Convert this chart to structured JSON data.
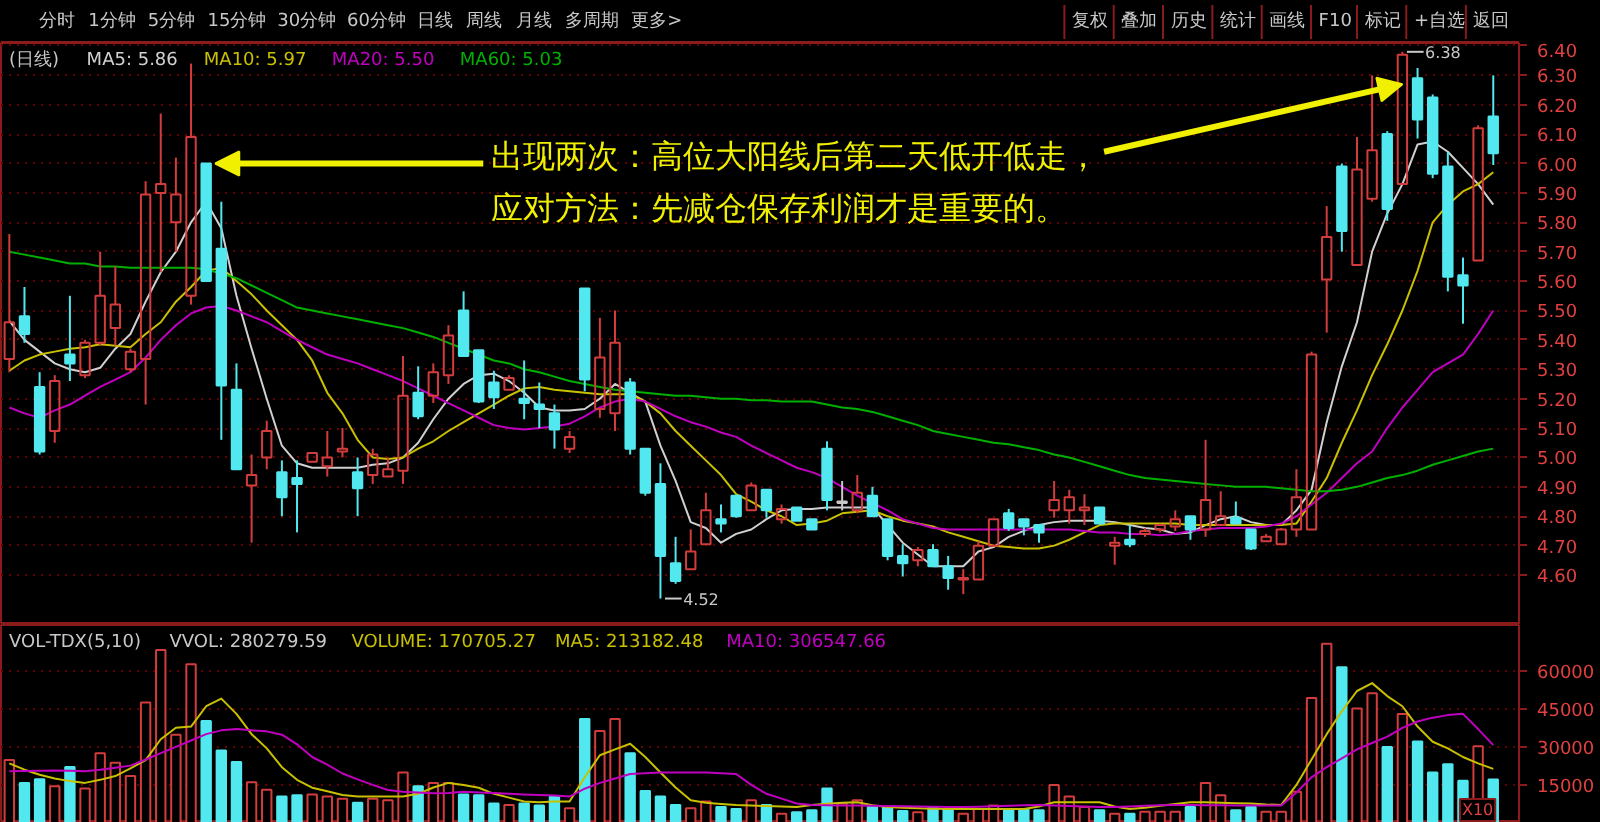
{
  "chart_data": [
    {
      "type": "other",
      "annotations": [
        "分时",
        "1分钟",
        "5分钟",
        "15分钟",
        "30分钟",
        "60分钟",
        "日线",
        "周线",
        "月线",
        "多周期",
        "更多>"
      ]
    },
    {
      "type": "other",
      "annotations": [
        "复权",
        "叠加",
        "历史",
        "统计",
        "画线",
        "F10",
        "标记",
        "+自选",
        "返回"
      ]
    },
    {
      "type": "candlestick",
      "title": "(日线)",
      "legend": "top left",
      "grid": "y",
      "tick_labels": "y",
      "categories": [
        null,
        null,
        null,
        null,
        null,
        null,
        null,
        null,
        null,
        null,
        null,
        null,
        null,
        null,
        null,
        null,
        null,
        null,
        null,
        null,
        null,
        null,
        null,
        null,
        null,
        null,
        null,
        null,
        null,
        null,
        null,
        null,
        null,
        null,
        null,
        null,
        null,
        null,
        null,
        null,
        null,
        null,
        null,
        null,
        null,
        null,
        null,
        null,
        null,
        null,
        null,
        null,
        null,
        null,
        null,
        null,
        null,
        null,
        null,
        null,
        null,
        null,
        null,
        null,
        null,
        null,
        null,
        null,
        null,
        null,
        null,
        null,
        null,
        null,
        null,
        null,
        null,
        null,
        null,
        null,
        null,
        null,
        null,
        null,
        null,
        null,
        null,
        null,
        null,
        null,
        null,
        null,
        null,
        null,
        null,
        null,
        null,
        null,
        null
      ],
      "ohlc": [
        [
          5.335,
          5.76,
          5.29,
          5.46
        ],
        [
          5.48,
          5.58,
          5.39,
          5.42
        ],
        [
          5.24,
          5.29,
          5.01,
          5.02
        ],
        [
          5.09,
          5.28,
          5.05,
          5.26
        ],
        [
          5.35,
          5.55,
          5.26,
          5.32
        ],
        [
          5.28,
          5.4,
          5.27,
          5.39
        ],
        [
          5.39,
          5.7,
          5.38,
          5.55
        ],
        [
          5.44,
          5.65,
          5.38,
          5.52
        ],
        [
          5.3,
          5.37,
          5.29,
          5.36
        ],
        [
          5.335,
          5.94,
          5.18,
          5.895
        ],
        [
          5.9,
          6.17,
          5.63,
          5.93
        ],
        [
          5.8,
          6.02,
          5.7,
          5.895
        ],
        [
          5.55,
          6.34,
          5.52,
          6.09
        ],
        [
          6.0,
          6.0,
          5.6,
          5.6
        ],
        [
          5.71,
          5.87,
          5.06,
          5.245
        ],
        [
          5.23,
          5.32,
          4.96,
          4.96
        ],
        [
          4.905,
          5.01,
          4.71,
          4.94
        ],
        [
          5.0,
          5.125,
          4.96,
          5.09
        ],
        [
          4.95,
          4.99,
          4.8,
          4.865
        ],
        [
          4.93,
          4.99,
          4.745,
          4.91
        ],
        [
          4.985,
          5.015,
          4.985,
          5.015
        ],
        [
          4.97,
          5.09,
          4.935,
          5.0
        ],
        [
          5.02,
          5.1,
          5.0,
          5.03
        ],
        [
          4.95,
          5.0,
          4.8,
          4.895
        ],
        [
          4.94,
          5.03,
          4.91,
          5.01
        ],
        [
          4.935,
          5.0,
          4.935,
          4.96
        ],
        [
          4.955,
          5.345,
          4.91,
          5.21
        ],
        [
          5.22,
          5.31,
          5.13,
          5.14
        ],
        [
          5.21,
          5.32,
          5.185,
          5.29
        ],
        [
          5.28,
          5.45,
          5.25,
          5.415
        ],
        [
          5.5,
          5.565,
          5.345,
          5.345
        ],
        [
          5.365,
          5.365,
          5.185,
          5.19
        ],
        [
          5.255,
          5.295,
          5.165,
          5.205
        ],
        [
          5.23,
          5.28,
          5.23,
          5.27
        ],
        [
          5.2,
          5.33,
          5.13,
          5.185
        ],
        [
          5.18,
          5.255,
          5.1,
          5.165
        ],
        [
          5.15,
          5.18,
          5.03,
          5.095
        ],
        [
          5.03,
          5.09,
          5.015,
          5.07
        ],
        [
          5.575,
          5.575,
          5.225,
          5.265
        ],
        [
          5.165,
          5.475,
          5.135,
          5.34
        ],
        [
          5.15,
          5.5,
          5.09,
          5.39
        ],
        [
          5.255,
          5.27,
          5.01,
          5.03
        ],
        [
          5.03,
          5.03,
          4.87,
          4.88
        ],
        [
          4.91,
          4.98,
          4.52,
          4.665
        ],
        [
          4.64,
          4.73,
          4.57,
          4.58
        ],
        [
          4.62,
          4.755,
          4.62,
          4.68
        ],
        [
          4.705,
          4.88,
          4.705,
          4.82
        ],
        [
          4.79,
          4.84,
          4.745,
          4.775
        ],
        [
          4.87,
          4.87,
          4.795,
          4.8
        ],
        [
          4.82,
          4.915,
          4.82,
          4.905
        ],
        [
          4.89,
          4.89,
          4.795,
          4.82
        ],
        [
          4.79,
          4.84,
          4.775,
          4.825
        ],
        [
          4.83,
          4.83,
          4.785,
          4.785
        ],
        [
          4.79,
          4.79,
          4.755,
          4.755
        ],
        [
          5.03,
          5.055,
          4.82,
          4.855
        ],
        [
          4.85,
          4.92,
          4.82,
          4.845
        ],
        [
          4.82,
          4.94,
          4.81,
          4.88
        ],
        [
          4.87,
          4.9,
          4.8,
          4.8
        ],
        [
          4.79,
          4.79,
          4.65,
          4.665
        ],
        [
          4.665,
          4.705,
          4.595,
          4.64
        ],
        [
          4.65,
          4.695,
          4.63,
          4.685
        ],
        [
          4.685,
          4.705,
          4.63,
          4.63
        ],
        [
          4.63,
          4.665,
          4.55,
          4.59
        ],
        [
          4.585,
          4.62,
          4.535,
          4.59
        ],
        [
          4.585,
          4.715,
          4.585,
          4.7
        ],
        [
          4.7,
          4.79,
          4.7,
          4.79
        ],
        [
          4.81,
          4.825,
          4.75,
          4.76
        ],
        [
          4.79,
          4.79,
          4.735,
          4.765
        ],
        [
          4.77,
          4.77,
          4.71,
          4.745
        ],
        [
          4.82,
          4.92,
          4.795,
          4.855
        ],
        [
          4.82,
          4.89,
          4.775,
          4.865
        ],
        [
          4.82,
          4.875,
          4.77,
          4.83
        ],
        [
          4.83,
          4.83,
          4.775,
          4.775
        ],
        [
          4.7,
          4.73,
          4.635,
          4.71
        ],
        [
          4.72,
          4.77,
          4.695,
          4.705
        ],
        [
          4.74,
          4.76,
          4.73,
          4.75
        ],
        [
          4.755,
          4.775,
          4.745,
          4.77
        ],
        [
          4.765,
          4.82,
          4.75,
          4.79
        ],
        [
          4.8,
          4.8,
          4.72,
          4.755
        ],
        [
          4.755,
          5.06,
          4.73,
          4.855
        ],
        [
          4.77,
          4.885,
          4.77,
          4.8
        ],
        [
          4.795,
          4.85,
          4.775,
          4.775
        ],
        [
          4.755,
          4.755,
          4.685,
          4.69
        ],
        [
          4.715,
          4.74,
          4.715,
          4.73
        ],
        [
          4.705,
          4.76,
          4.705,
          4.755
        ],
        [
          4.755,
          4.96,
          4.73,
          4.865
        ],
        [
          4.755,
          5.36,
          4.755,
          5.35
        ],
        [
          5.605,
          5.855,
          5.425,
          5.75
        ],
        [
          5.99,
          6.0,
          5.7,
          5.77
        ],
        [
          5.655,
          6.09,
          5.655,
          5.98
        ],
        [
          5.88,
          6.3,
          5.87,
          6.045
        ],
        [
          6.1,
          6.11,
          5.805,
          5.845
        ],
        [
          5.93,
          6.38,
          5.93,
          6.37
        ],
        [
          6.29,
          6.325,
          6.085,
          6.15
        ],
        [
          6.225,
          6.235,
          5.95,
          5.965
        ],
        [
          5.99,
          6.04,
          5.565,
          5.615
        ],
        [
          5.62,
          5.68,
          5.455,
          5.585
        ],
        [
          5.67,
          6.13,
          5.67,
          6.12
        ],
        [
          6.16,
          6.3,
          5.995,
          6.035
        ]
      ],
      "colors": [
        "#d23c3c",
        "#52e8f0",
        "#52e8f0",
        "#d23c3c",
        "#52e8f0",
        "#d23c3c",
        "#d23c3c",
        "#d23c3c",
        "#d23c3c",
        "#d23c3c",
        "#d23c3c",
        "#d23c3c",
        "#d23c3c",
        "#52e8f0",
        "#52e8f0",
        "#52e8f0",
        "#d23c3c",
        "#d23c3c",
        "#52e8f0",
        "#52e8f0",
        "#d23c3c",
        "#d23c3c",
        "#d23c3c",
        "#52e8f0",
        "#d23c3c",
        "#d23c3c",
        "#d23c3c",
        "#52e8f0",
        "#d23c3c",
        "#d23c3c",
        "#52e8f0",
        "#52e8f0",
        "#52e8f0",
        "#d23c3c",
        "#52e8f0",
        "#52e8f0",
        "#52e8f0",
        "#d23c3c",
        "#52e8f0",
        "#d23c3c",
        "#d23c3c",
        "#52e8f0",
        "#52e8f0",
        "#52e8f0",
        "#52e8f0",
        "#d23c3c",
        "#d23c3c",
        "#52e8f0",
        "#52e8f0",
        "#d23c3c",
        "#52e8f0",
        "#d23c3c",
        "#52e8f0",
        "#52e8f0",
        "#52e8f0",
        "#c8c8c8",
        "#d23c3c",
        "#52e8f0",
        "#52e8f0",
        "#52e8f0",
        "#d23c3c",
        "#52e8f0",
        "#52e8f0",
        "#d23c3c",
        "#d23c3c",
        "#d23c3c",
        "#52e8f0",
        "#52e8f0",
        "#52e8f0",
        "#d23c3c",
        "#d23c3c",
        "#d23c3c",
        "#52e8f0",
        "#d23c3c",
        "#52e8f0",
        "#d23c3c",
        "#d23c3c",
        "#d23c3c",
        "#52e8f0",
        "#d23c3c",
        "#d23c3c",
        "#52e8f0",
        "#52e8f0",
        "#d23c3c",
        "#d23c3c",
        "#d23c3c",
        "#d23c3c",
        "#d23c3c",
        "#52e8f0",
        "#d23c3c",
        "#d23c3c",
        "#52e8f0",
        "#d23c3c",
        "#52e8f0",
        "#52e8f0",
        "#52e8f0",
        "#52e8f0",
        "#d23c3c",
        "#52e8f0"
      ],
      "series": [
        {
          "type": "line",
          "name": "MA5: 5.86",
          "color": "#d0d0d0",
          "values": [
            5.465,
            5.4,
            5.36,
            5.32,
            5.3,
            5.29,
            5.305,
            5.37,
            5.42,
            5.53,
            5.63,
            5.7,
            5.8,
            5.87,
            5.78,
            5.55,
            5.37,
            5.2,
            5.04,
            4.98,
            4.965,
            4.965,
            4.965,
            4.965,
            4.975,
            4.98,
            5.0,
            5.05,
            5.13,
            5.2,
            5.25,
            5.28,
            5.285,
            5.26,
            5.22,
            5.17,
            5.16,
            5.16,
            5.165,
            5.2,
            5.25,
            5.22,
            5.19,
            5.04,
            4.92,
            4.78,
            4.76,
            4.71,
            4.74,
            4.755,
            4.79,
            4.82,
            4.825,
            4.825,
            4.83,
            4.83,
            4.83,
            4.83,
            4.77,
            4.71,
            4.67,
            4.63,
            4.63,
            4.63,
            4.68,
            4.695,
            4.73,
            4.75,
            4.77,
            4.78,
            4.785,
            4.785,
            4.785,
            4.78,
            4.77,
            4.76,
            4.755,
            4.74,
            4.745,
            4.77,
            4.79,
            4.8,
            4.78,
            4.77,
            4.77,
            4.82,
            4.89,
            5.12,
            5.31,
            5.46,
            5.7,
            5.83,
            5.93,
            6.065,
            6.075,
            6.04,
            5.985,
            5.93,
            5.86
          ]
        },
        {
          "type": "line",
          "name": "MA10: 5.97",
          "color": "#c8c000",
          "values": [
            5.295,
            5.33,
            5.35,
            5.36,
            5.37,
            5.375,
            5.385,
            5.38,
            5.375,
            5.42,
            5.46,
            5.53,
            5.58,
            5.635,
            5.645,
            5.6,
            5.555,
            5.5,
            5.45,
            5.4,
            5.33,
            5.22,
            5.15,
            5.06,
            5.0,
            4.995,
            5.0,
            5.03,
            5.055,
            5.09,
            5.12,
            5.15,
            5.18,
            5.21,
            5.235,
            5.24,
            5.23,
            5.225,
            5.22,
            5.215,
            5.215,
            5.215,
            5.19,
            5.15,
            5.09,
            5.04,
            4.99,
            4.94,
            4.875,
            4.85,
            4.82,
            4.8,
            4.77,
            4.775,
            4.785,
            4.81,
            4.815,
            4.82,
            4.8,
            4.785,
            4.775,
            4.765,
            4.745,
            4.73,
            4.715,
            4.7,
            4.695,
            4.69,
            4.69,
            4.7,
            4.72,
            4.745,
            4.77,
            4.775,
            4.775,
            4.775,
            4.775,
            4.775,
            4.77,
            4.77,
            4.77,
            4.77,
            4.77,
            4.77,
            4.77,
            4.775,
            4.85,
            4.93,
            5.05,
            5.16,
            5.28,
            5.385,
            5.5,
            5.635,
            5.8,
            5.86,
            5.905,
            5.93,
            5.97
          ]
        },
        {
          "type": "line",
          "name": "MA20: 5.50",
          "color": "#c000c0",
          "values": [
            5.17,
            5.15,
            5.135,
            5.16,
            5.18,
            5.21,
            5.24,
            5.265,
            5.29,
            5.34,
            5.4,
            5.45,
            5.49,
            5.51,
            5.515,
            5.5,
            5.48,
            5.46,
            5.43,
            5.4,
            5.375,
            5.35,
            5.335,
            5.32,
            5.3,
            5.28,
            5.26,
            5.235,
            5.21,
            5.185,
            5.16,
            5.135,
            5.11,
            5.1,
            5.095,
            5.1,
            5.105,
            5.115,
            5.14,
            5.17,
            5.19,
            5.2,
            5.19,
            5.165,
            5.14,
            5.12,
            5.105,
            5.085,
            5.07,
            5.04,
            5.015,
            4.99,
            4.965,
            4.95,
            4.93,
            4.9,
            4.87,
            4.845,
            4.82,
            4.79,
            4.775,
            4.76,
            4.755,
            4.755,
            4.755,
            4.755,
            4.755,
            4.755,
            4.755,
            4.755,
            4.755,
            4.75,
            4.745,
            4.745,
            4.74,
            4.74,
            4.735,
            4.74,
            4.75,
            4.755,
            4.76,
            4.76,
            4.76,
            4.765,
            4.775,
            4.8,
            4.84,
            4.88,
            4.93,
            4.98,
            5.02,
            5.1,
            5.17,
            5.23,
            5.29,
            5.32,
            5.35,
            5.42,
            5.5
          ]
        },
        {
          "type": "line",
          "name": "MA60: 5.03",
          "color": "#00b000",
          "values": [
            5.7,
            5.69,
            5.68,
            5.67,
            5.66,
            5.66,
            5.65,
            5.65,
            5.645,
            5.645,
            5.645,
            5.645,
            5.645,
            5.64,
            5.625,
            5.61,
            5.585,
            5.56,
            5.535,
            5.51,
            5.5,
            5.49,
            5.48,
            5.47,
            5.46,
            5.45,
            5.44,
            5.425,
            5.41,
            5.39,
            5.37,
            5.35,
            5.33,
            5.32,
            5.3,
            5.29,
            5.275,
            5.26,
            5.25,
            5.24,
            5.23,
            5.225,
            5.22,
            5.215,
            5.21,
            5.21,
            5.205,
            5.2,
            5.2,
            5.195,
            5.195,
            5.19,
            5.19,
            5.19,
            5.18,
            5.17,
            5.165,
            5.155,
            5.14,
            5.125,
            5.11,
            5.09,
            5.08,
            5.07,
            5.06,
            5.05,
            5.045,
            5.035,
            5.025,
            5.01,
            5.0,
            4.985,
            4.97,
            4.955,
            4.94,
            4.93,
            4.925,
            4.92,
            4.915,
            4.91,
            4.905,
            4.9,
            4.9,
            4.9,
            4.895,
            4.89,
            4.885,
            4.885,
            4.89,
            4.9,
            4.915,
            4.93,
            4.94,
            4.955,
            4.975,
            4.99,
            5.005,
            5.02,
            5.03
          ]
        }
      ],
      "ylim": [
        4.43,
        6.41
      ],
      "yticks": [
        {
          "value": 4.6,
          "label": "4.60"
        },
        {
          "value": 4.7,
          "label": "4.70"
        },
        {
          "value": 4.8,
          "label": "4.80"
        },
        {
          "value": 4.9,
          "label": "4.90"
        },
        {
          "value": 5.0,
          "label": "5.00"
        },
        {
          "value": 5.1,
          "label": "5.10"
        },
        {
          "value": 5.2,
          "label": "5.20"
        },
        {
          "value": 5.3,
          "label": "5.30"
        },
        {
          "value": 5.4,
          "label": "5.40"
        },
        {
          "value": 5.5,
          "label": "5.50"
        },
        {
          "value": 5.6,
          "label": "5.60"
        },
        {
          "value": 5.7,
          "label": "5.70"
        },
        {
          "value": 5.8,
          "label": "5.80"
        },
        {
          "value": 5.9,
          "label": "5.90"
        },
        {
          "value": 6.0,
          "label": "6.00"
        },
        {
          "value": 6.1,
          "label": "6.10"
        },
        {
          "value": 6.2,
          "label": "6.20"
        },
        {
          "value": 6.3,
          "label": "6.30"
        },
        {
          "value": 6.4,
          "label": "6.40"
        }
      ],
      "annotations": [
        "出现两次：高位大阳线后第二天低开低走，",
        "应对方法：先减仓保存利润才是重要的。",
        "6.38",
        "4.52"
      ]
    },
    {
      "type": "bar",
      "title": "VOL-TDX(5,10)",
      "legend": "top left",
      "grid": "y",
      "tick_labels": "y",
      "categories": [
        null,
        null,
        null,
        null,
        null,
        null,
        null,
        null,
        null,
        null,
        null,
        null,
        null,
        null,
        null,
        null,
        null,
        null,
        null,
        null,
        null,
        null,
        null,
        null,
        null,
        null,
        null,
        null,
        null,
        null,
        null,
        null,
        null,
        null,
        null,
        null,
        null,
        null,
        null,
        null,
        null,
        null,
        null,
        null,
        null,
        null,
        null,
        null,
        null,
        null,
        null,
        null,
        null,
        null,
        null,
        null,
        null,
        null,
        null,
        null,
        null,
        null,
        null,
        null,
        null,
        null,
        null,
        null,
        null,
        null,
        null,
        null,
        null,
        null,
        null,
        null,
        null,
        null,
        null,
        null,
        null,
        null,
        null,
        null,
        null,
        null,
        null,
        null,
        null,
        null,
        null,
        null,
        null,
        null,
        null,
        null,
        null,
        null,
        null
      ],
      "series": [
        {
          "type": "bar",
          "colors": [
            "#d23c3c",
            "#52e8f0",
            "#52e8f0",
            "#d23c3c",
            "#52e8f0",
            "#d23c3c",
            "#d23c3c",
            "#d23c3c",
            "#d23c3c",
            "#d23c3c",
            "#d23c3c",
            "#d23c3c",
            "#d23c3c",
            "#52e8f0",
            "#52e8f0",
            "#52e8f0",
            "#d23c3c",
            "#d23c3c",
            "#52e8f0",
            "#52e8f0",
            "#d23c3c",
            "#d23c3c",
            "#d23c3c",
            "#52e8f0",
            "#d23c3c",
            "#d23c3c",
            "#d23c3c",
            "#52e8f0",
            "#d23c3c",
            "#d23c3c",
            "#52e8f0",
            "#52e8f0",
            "#52e8f0",
            "#d23c3c",
            "#52e8f0",
            "#52e8f0",
            "#52e8f0",
            "#d23c3c",
            "#52e8f0",
            "#d23c3c",
            "#d23c3c",
            "#52e8f0",
            "#52e8f0",
            "#52e8f0",
            "#52e8f0",
            "#d23c3c",
            "#d23c3c",
            "#52e8f0",
            "#52e8f0",
            "#d23c3c",
            "#52e8f0",
            "#d23c3c",
            "#52e8f0",
            "#52e8f0",
            "#52e8f0",
            "#d23c3c",
            "#d23c3c",
            "#52e8f0",
            "#52e8f0",
            "#52e8f0",
            "#d23c3c",
            "#52e8f0",
            "#52e8f0",
            "#d23c3c",
            "#d23c3c",
            "#d23c3c",
            "#52e8f0",
            "#52e8f0",
            "#52e8f0",
            "#d23c3c",
            "#d23c3c",
            "#d23c3c",
            "#52e8f0",
            "#d23c3c",
            "#52e8f0",
            "#d23c3c",
            "#d23c3c",
            "#d23c3c",
            "#52e8f0",
            "#d23c3c",
            "#d23c3c",
            "#52e8f0",
            "#52e8f0",
            "#d23c3c",
            "#d23c3c",
            "#d23c3c",
            "#d23c3c",
            "#d23c3c",
            "#52e8f0",
            "#d23c3c",
            "#d23c3c",
            "#52e8f0",
            "#d23c3c",
            "#52e8f0",
            "#52e8f0",
            "#52e8f0",
            "#52e8f0",
            "#d23c3c",
            "#52e8f0"
          ],
          "values": [
            24800,
            15800,
            17200,
            14500,
            22100,
            13600,
            27500,
            23700,
            18500,
            47500,
            68200,
            34800,
            62500,
            40200,
            28600,
            24000,
            16100,
            13100,
            10400,
            10900,
            11200,
            10400,
            9600,
            8000,
            9600,
            9000,
            19900,
            14500,
            15800,
            15800,
            11200,
            10900,
            7700,
            7100,
            7700,
            6900,
            10400,
            5800,
            41000,
            36200,
            41000,
            27500,
            12600,
            10400,
            7100,
            5800,
            8500,
            6300,
            5500,
            9000,
            7100,
            3600,
            4200,
            5000,
            13600,
            7700,
            9000,
            6300,
            6300,
            4700,
            4200,
            6300,
            5500,
            3600,
            5500,
            6900,
            5500,
            5500,
            5000,
            15000,
            10400,
            6300,
            5000,
            3600,
            3600,
            4400,
            4400,
            4400,
            6300,
            15800,
            10900,
            5000,
            6300,
            4400,
            4400,
            12300,
            49200,
            70600,
            61400,
            45100,
            51100,
            29900,
            42900,
            32100,
            19900,
            23100,
            16600,
            30200,
            17100
          ]
        },
        {
          "type": "line",
          "name": "MA5: 213182.48",
          "color": "#c8c000",
          "values": [
            23500,
            21000,
            19000,
            17500,
            16500,
            15800,
            17000,
            18500,
            21500,
            24800,
            33000,
            37500,
            38000,
            46000,
            49000,
            43000,
            35000,
            29400,
            22000,
            17000,
            13900,
            12500,
            11000,
            10400,
            10400,
            10400,
            10400,
            11500,
            14000,
            15800,
            15000,
            13900,
            11500,
            10000,
            8500,
            8200,
            8500,
            8500,
            18000,
            26700,
            29000,
            31200,
            26000,
            19900,
            14000,
            9000,
            8000,
            7500,
            7100,
            6900,
            6700,
            6500,
            6300,
            7100,
            7600,
            8000,
            8200,
            7000,
            6300,
            6000,
            5800,
            5600,
            5500,
            5500,
            5500,
            5500,
            5500,
            5500,
            6500,
            8200,
            8200,
            8200,
            8200,
            6500,
            5500,
            6000,
            6800,
            7500,
            8200,
            8200,
            8000,
            7800,
            7700,
            7300,
            7100,
            15000,
            25000,
            35000,
            44000,
            52000,
            55100,
            50000,
            46000,
            38000,
            32000,
            29400,
            26000,
            23500,
            21300
          ]
        },
        {
          "type": "line",
          "name": "MA10: 306547.66",
          "color": "#c000c0",
          "values": [
            20400,
            20500,
            20600,
            20700,
            20600,
            20400,
            21000,
            21800,
            22600,
            25000,
            27500,
            30000,
            32500,
            35000,
            36500,
            37000,
            36500,
            36100,
            34800,
            31000,
            26000,
            23000,
            19500,
            17200,
            15000,
            13000,
            12300,
            12000,
            11700,
            11800,
            12300,
            12000,
            11800,
            11500,
            11200,
            11000,
            10800,
            10400,
            13500,
            15800,
            17500,
            19300,
            19600,
            19900,
            19900,
            19900,
            19900,
            19600,
            19300,
            15000,
            11500,
            9600,
            7700,
            7100,
            7000,
            6900,
            6900,
            6800,
            6700,
            6600,
            6500,
            6400,
            6300,
            6300,
            6400,
            6600,
            6800,
            7000,
            7100,
            6900,
            6700,
            6500,
            6300,
            6300,
            6500,
            6800,
            7000,
            7100,
            7100,
            7000,
            7000,
            6900,
            6900,
            6900,
            6900,
            12000,
            18000,
            22000,
            25500,
            29000,
            31500,
            34000,
            37500,
            40000,
            41500,
            42500,
            43000,
            37000,
            30700
          ]
        }
      ],
      "ylim": [
        0,
        78000
      ],
      "yticks": [
        15000,
        30000,
        45000,
        60000
      ],
      "annotations": [
        "VVOL: 280279.59",
        "VOLUME: 170705.27",
        "X10"
      ]
    }
  ]
}
